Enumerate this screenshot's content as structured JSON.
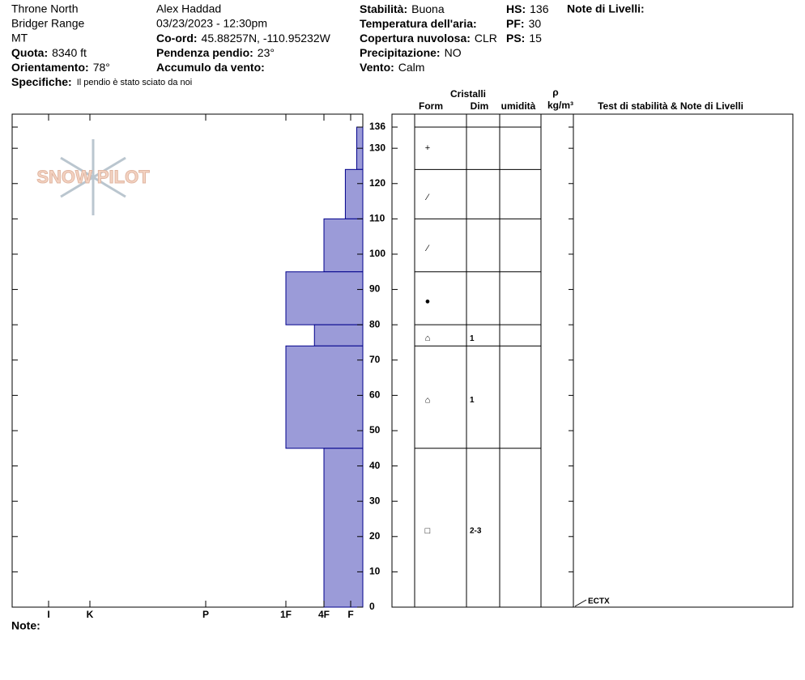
{
  "header": {
    "location": "Throne North",
    "range": "Bridger Range",
    "state": "MT",
    "observer": "Alex Haddad",
    "datetime": "03/23/2023 - 12:30pm",
    "fields": [
      {
        "label": "Quota:",
        "value": "8340 ft"
      },
      {
        "label": "Orientamento:",
        "value": "78°"
      },
      {
        "label": "Specifiche:",
        "value": "Il pendio è stato sciato da noi"
      },
      {
        "label": "Co-ord:",
        "value": "45.88257N, -110.95232W"
      },
      {
        "label": "Pendenza pendio:",
        "value": "23°"
      },
      {
        "label": "Accumulo da vento:"
      },
      {
        "label": "Stabilità:",
        "value": "Buona"
      },
      {
        "label": "Temperatura dell'aria:"
      },
      {
        "label": "Copertura nuvolosa:",
        "value": "CLR"
      },
      {
        "label": "Precipitazione:",
        "value": "NO"
      },
      {
        "label": "Vento:",
        "value": "Calm"
      },
      {
        "label": "HS:",
        "value": "136"
      },
      {
        "label": "PF:",
        "value": "30"
      },
      {
        "label": "PS:",
        "value": "15"
      }
    ],
    "layer_notes": "Note di Livelli:"
  },
  "logo": "SNOW PILOT",
  "notes_label": "Note:",
  "chart_data": {
    "type": "snowpit",
    "ylim": [
      0,
      136
    ],
    "yticks": [
      0,
      10,
      20,
      30,
      40,
      50,
      60,
      70,
      80,
      90,
      100,
      110,
      120,
      130,
      136
    ],
    "xlim": [
      0,
      6
    ],
    "xticks": [
      {
        "value": 6,
        "label": "I"
      },
      {
        "value": 5,
        "label": "K"
      },
      {
        "value": 4,
        "label": "P"
      },
      {
        "value": 3,
        "label": "1F"
      },
      {
        "value": 2,
        "label": "4F"
      },
      {
        "value": 1,
        "label": "F"
      }
    ],
    "color": "#9b9bd8",
    "columns": {
      "crystals": "Cristalli",
      "form": "Form",
      "size": "Dim",
      "moisture": "umidità",
      "density": "ρ",
      "density_unit": "kg/m³",
      "tests": "Test di stabilità & Note di Livelli"
    },
    "layers": [
      {
        "top": 136,
        "bottom": 124,
        "hardness": 0.5,
        "form": "+"
      },
      {
        "top": 124,
        "bottom": 110,
        "hardness": 1.2,
        "form": "⁄"
      },
      {
        "top": 110,
        "bottom": 95,
        "hardness": 2,
        "form": "⁄"
      },
      {
        "top": 95,
        "bottom": 80,
        "hardness": 3,
        "form": "●"
      },
      {
        "top": 80,
        "bottom": 74,
        "hardness": 2.25,
        "form": "⌂",
        "size": "1"
      },
      {
        "top": 74,
        "bottom": 45,
        "hardness": 3,
        "form": "⌂",
        "size": "1"
      },
      {
        "top": 45,
        "bottom": 0,
        "hardness": 2,
        "form": "□",
        "size": "2-3"
      }
    ],
    "tests": [
      {
        "height": 0,
        "label": "ECTX"
      }
    ]
  }
}
